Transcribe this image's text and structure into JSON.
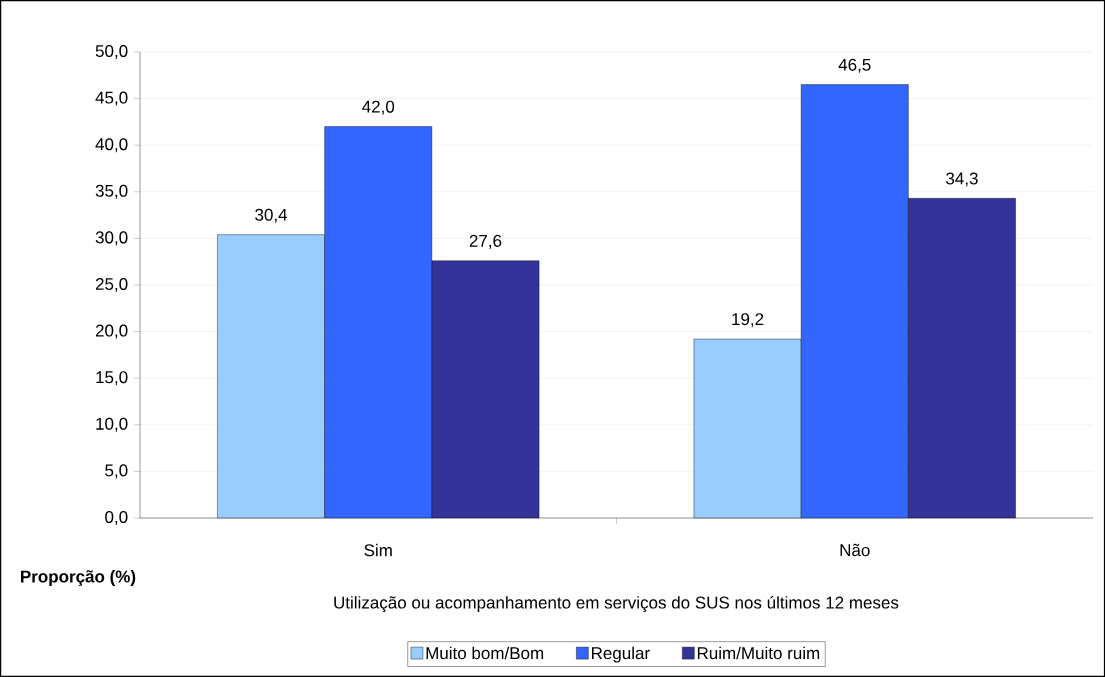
{
  "chart_data": {
    "type": "bar",
    "xlabel": "Utilização ou acompanhamento em serviços do SUS nos últimos 12 meses",
    "ylabel": "Proporção (%)",
    "categories": [
      "Sim",
      "Não"
    ],
    "series": [
      {
        "name": "Muito bom/Bom",
        "color": "#99ccff",
        "values": [
          30.4,
          19.2
        ],
        "value_labels": [
          "30,4",
          "19,2"
        ]
      },
      {
        "name": "Regular",
        "color": "#3366ff",
        "values": [
          42.0,
          46.5
        ],
        "value_labels": [
          "42,0",
          "46,5"
        ]
      },
      {
        "name": "Ruim/Muito ruim",
        "color": "#333399",
        "values": [
          27.6,
          34.3
        ],
        "value_labels": [
          "27,6",
          "34,3"
        ]
      }
    ],
    "ylim": [
      0,
      50
    ],
    "yticks": [
      {
        "value": 0,
        "label": "0,0"
      },
      {
        "value": 5,
        "label": "5,0"
      },
      {
        "value": 10,
        "label": "10,0"
      },
      {
        "value": 15,
        "label": "15,0"
      },
      {
        "value": 20,
        "label": "20,0"
      },
      {
        "value": 25,
        "label": "25,0"
      },
      {
        "value": 30,
        "label": "30,0"
      },
      {
        "value": 35,
        "label": "35,0"
      },
      {
        "value": 40,
        "label": "40,0"
      },
      {
        "value": 45,
        "label": "45,0"
      },
      {
        "value": 50,
        "label": "50,0"
      }
    ],
    "grid": "y",
    "legend": "bottom"
  }
}
